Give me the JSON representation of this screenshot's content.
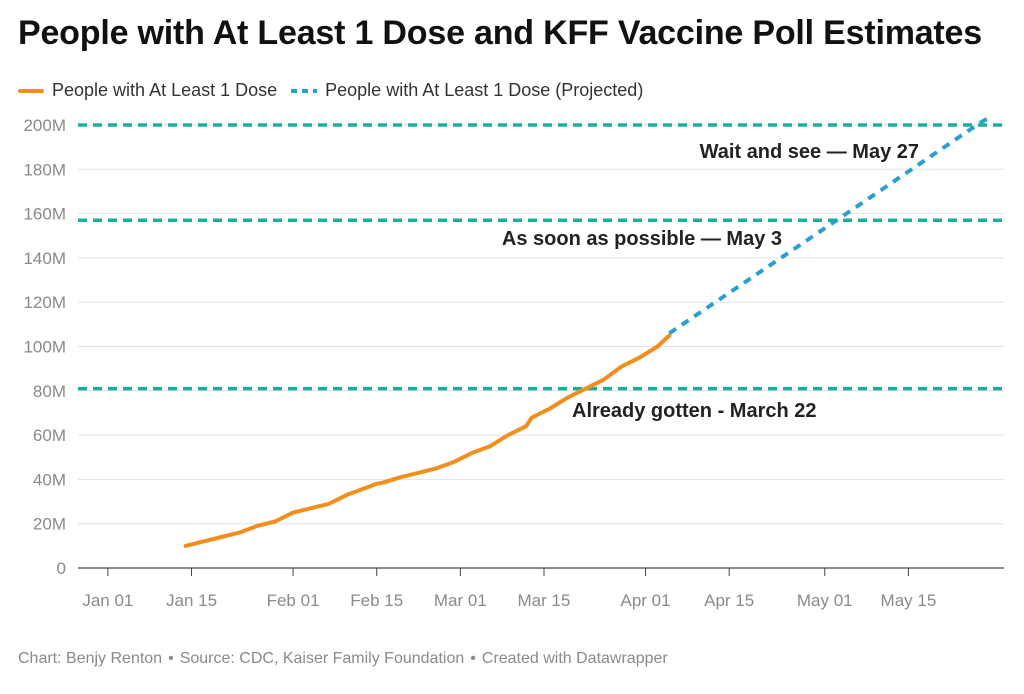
{
  "chart_data": {
    "type": "line",
    "title": "People with At Least 1 Dose and KFF Vaccine Poll Estimates",
    "xlabel": "",
    "ylabel": "",
    "x_range": [
      "2020-12-27",
      "2021-05-31"
    ],
    "ylim": [
      0,
      200000000
    ],
    "y_ticks": [
      {
        "value": 0,
        "label": "0"
      },
      {
        "value": 20000000,
        "label": "20M"
      },
      {
        "value": 40000000,
        "label": "40M"
      },
      {
        "value": 60000000,
        "label": "60M"
      },
      {
        "value": 80000000,
        "label": "80M"
      },
      {
        "value": 100000000,
        "label": "100M"
      },
      {
        "value": 120000000,
        "label": "120M"
      },
      {
        "value": 140000000,
        "label": "140M"
      },
      {
        "value": 160000000,
        "label": "160M"
      },
      {
        "value": 180000000,
        "label": "180M"
      },
      {
        "value": 200000000,
        "label": "200M"
      }
    ],
    "x_ticks": [
      {
        "date": "2021-01-01",
        "label": "Jan 01"
      },
      {
        "date": "2021-01-15",
        "label": "Jan 15"
      },
      {
        "date": "2021-02-01",
        "label": "Feb 01"
      },
      {
        "date": "2021-02-15",
        "label": "Feb 15"
      },
      {
        "date": "2021-03-01",
        "label": "Mar 01"
      },
      {
        "date": "2021-03-15",
        "label": "Mar 15"
      },
      {
        "date": "2021-04-01",
        "label": "Apr 01"
      },
      {
        "date": "2021-04-15",
        "label": "Apr 15"
      },
      {
        "date": "2021-05-01",
        "label": "May 01"
      },
      {
        "date": "2021-05-15",
        "label": "May 15"
      }
    ],
    "grid": true,
    "legend_position": "top-left",
    "series": [
      {
        "name": "People with At Least 1 Dose",
        "color": "#f28e1c",
        "style": "solid",
        "points": [
          {
            "x": "2021-01-14",
            "y": 10000000
          },
          {
            "x": "2021-01-17",
            "y": 12000000
          },
          {
            "x": "2021-01-20",
            "y": 14000000
          },
          {
            "x": "2021-01-23",
            "y": 16000000
          },
          {
            "x": "2021-01-26",
            "y": 19000000
          },
          {
            "x": "2021-01-29",
            "y": 21000000
          },
          {
            "x": "2021-02-01",
            "y": 25000000
          },
          {
            "x": "2021-02-04",
            "y": 27000000
          },
          {
            "x": "2021-02-07",
            "y": 29000000
          },
          {
            "x": "2021-02-10",
            "y": 33000000
          },
          {
            "x": "2021-02-13",
            "y": 36000000
          },
          {
            "x": "2021-02-15",
            "y": 38000000
          },
          {
            "x": "2021-02-16",
            "y": 38500000
          },
          {
            "x": "2021-02-19",
            "y": 41000000
          },
          {
            "x": "2021-02-22",
            "y": 43000000
          },
          {
            "x": "2021-02-25",
            "y": 45000000
          },
          {
            "x": "2021-02-28",
            "y": 48000000
          },
          {
            "x": "2021-03-03",
            "y": 52000000
          },
          {
            "x": "2021-03-06",
            "y": 55000000
          },
          {
            "x": "2021-03-09",
            "y": 60000000
          },
          {
            "x": "2021-03-12",
            "y": 64000000
          },
          {
            "x": "2021-03-13",
            "y": 68000000
          },
          {
            "x": "2021-03-16",
            "y": 72000000
          },
          {
            "x": "2021-03-19",
            "y": 77000000
          },
          {
            "x": "2021-03-22",
            "y": 81000000
          },
          {
            "x": "2021-03-25",
            "y": 85000000
          },
          {
            "x": "2021-03-28",
            "y": 91000000
          },
          {
            "x": "2021-03-31",
            "y": 95000000
          },
          {
            "x": "2021-04-03",
            "y": 100000000
          },
          {
            "x": "2021-04-05",
            "y": 105000000
          }
        ]
      },
      {
        "name": "People with At Least 1 Dose (Projected)",
        "color": "#2a9fd0",
        "style": "dashed",
        "points": [
          {
            "x": "2021-04-05",
            "y": 106000000
          },
          {
            "x": "2021-05-03",
            "y": 157000000
          },
          {
            "x": "2021-05-27",
            "y": 201000000
          },
          {
            "x": "2021-05-29",
            "y": 204000000
          }
        ]
      }
    ],
    "reference_lines": [
      {
        "y": 200000000,
        "label": "Wait and see — May 27",
        "color": "#1aae9f"
      },
      {
        "y": 157000000,
        "label": "As soon as possible — May 3",
        "color": "#1aae9f"
      },
      {
        "y": 81000000,
        "label": "Already gotten - March 22",
        "color": "#1aae9f"
      }
    ]
  },
  "footer": {
    "chart_by": "Chart: Benjy Renton",
    "source": "Source: CDC, Kaiser Family Foundation",
    "tool": "Created with Datawrapper",
    "separator": "•"
  },
  "colors": {
    "axis_text": "#8a8a8a",
    "grid": "#e2e2e2",
    "annotation_text": "#222222"
  }
}
